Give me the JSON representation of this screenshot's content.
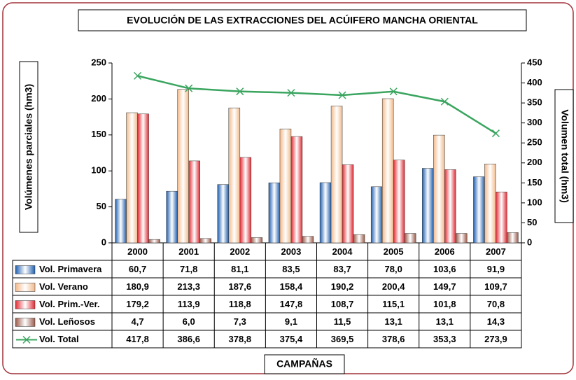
{
  "chart_data": {
    "type": "bar",
    "title": "EVOLUCIÓN DE LAS EXTRACCIONES DEL ACÚIFERO MANCHA ORIENTAL",
    "x_label": "CAMPAÑAS",
    "y_label": "Volúmenes parciales (hm3)",
    "y2_label": "Volumen total (hm3)",
    "categories": [
      "2000",
      "2001",
      "2002",
      "2003",
      "2004",
      "2005",
      "2006",
      "2007"
    ],
    "ylim": [
      0,
      250
    ],
    "yticks": [
      0,
      50,
      100,
      150,
      200,
      250
    ],
    "y2lim": [
      0,
      450
    ],
    "y2ticks": [
      0,
      50,
      100,
      150,
      200,
      250,
      300,
      350,
      400,
      450
    ],
    "series": [
      {
        "name": "Vol. Primavera",
        "color": "#1f5fb0",
        "values": [
          60.7,
          71.8,
          81.1,
          83.5,
          83.7,
          78.0,
          103.6,
          91.9
        ],
        "value_labels": [
          "60,7",
          "71,8",
          "81,1",
          "83,5",
          "83,7",
          "78,0",
          "103,6",
          "91,9"
        ]
      },
      {
        "name": "Vol. Verano",
        "color": "#f2b98a",
        "values": [
          180.9,
          213.3,
          187.6,
          158.4,
          190.2,
          200.4,
          149.7,
          109.7
        ],
        "value_labels": [
          "180,9",
          "213,3",
          "187,6",
          "158,4",
          "190,2",
          "200,4",
          "149,7",
          "109,7"
        ]
      },
      {
        "name": "Vol. Prim.-Ver.",
        "color": "#e02a34",
        "values": [
          179.2,
          113.9,
          118.8,
          147.8,
          108.7,
          115.1,
          101.8,
          70.8
        ],
        "value_labels": [
          "179,2",
          "113,9",
          "118,8",
          "147,8",
          "108,7",
          "115,1",
          "101,8",
          "70,8"
        ]
      },
      {
        "name": "Vol. Leñosos",
        "color": "#9a5a4a",
        "values": [
          4.7,
          6.0,
          7.3,
          9.1,
          11.5,
          13.1,
          13.1,
          14.3
        ],
        "value_labels": [
          "4,7",
          "6,0",
          "7,3",
          "9,1",
          "11,5",
          "13,1",
          "13,1",
          "14,3"
        ]
      },
      {
        "name": "Vol. Total",
        "type": "line",
        "axis": "y2",
        "color": "#3aa55f",
        "values": [
          417.8,
          386.6,
          378.8,
          375.4,
          369.5,
          378.6,
          353.3,
          273.9
        ],
        "value_labels": [
          "417,8",
          "386,6",
          "378,8",
          "375,4",
          "369,5",
          "378,6",
          "353,3",
          "273,9"
        ]
      }
    ]
  }
}
